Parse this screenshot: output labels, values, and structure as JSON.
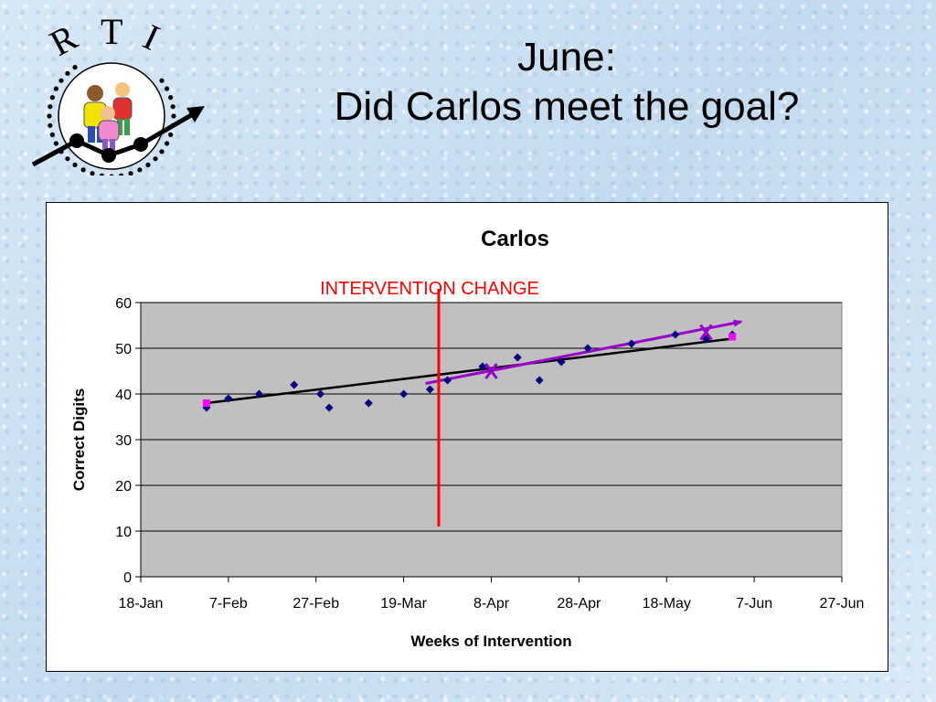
{
  "slide": {
    "title_line1": "June:",
    "title_line2": "Did Carlos meet the goal?",
    "logo_text": [
      "R",
      "T",
      "I"
    ]
  },
  "chart_data": {
    "type": "scatter",
    "title": "Carlos",
    "xlabel": "Weeks of Intervention",
    "ylabel": "Correct Digits",
    "x_ticks": [
      "18-Jan",
      "7-Feb",
      "27-Feb",
      "19-Mar",
      "8-Apr",
      "28-Apr",
      "18-May",
      "7-Jun",
      "27-Jun"
    ],
    "xlim": [
      "18-Jan",
      "27-Jun"
    ],
    "y_ticks": [
      0,
      10,
      20,
      30,
      40,
      50,
      60
    ],
    "ylim": [
      0,
      60
    ],
    "grid": "horizontal",
    "plot_background": "#c0c0c0",
    "series": [
      {
        "type": "scatter",
        "marker": "diamond",
        "color": "#000080",
        "points": [
          [
            "2-Feb",
            37
          ],
          [
            "7-Feb",
            39
          ],
          [
            "14-Feb",
            40
          ],
          [
            "22-Feb",
            42
          ],
          [
            "28-Feb",
            40
          ],
          [
            "2-Mar",
            37
          ],
          [
            "11-Mar",
            38
          ],
          [
            "19-Mar",
            40
          ],
          [
            "25-Mar",
            41
          ],
          [
            "29-Mar",
            43
          ],
          [
            "6-Apr",
            46
          ],
          [
            "14-Apr",
            48
          ],
          [
            "19-Apr",
            43
          ],
          [
            "24-Apr",
            47
          ],
          [
            "30-Apr",
            50
          ],
          [
            "10-May",
            51
          ],
          [
            "20-May",
            53
          ],
          [
            "27-May",
            52
          ],
          [
            "2-Jun",
            53
          ]
        ]
      },
      {
        "type": "line",
        "role": "trend-line",
        "color": "#000000",
        "points": [
          [
            "2-Feb",
            38
          ],
          [
            "2-Jun",
            52.1
          ]
        ]
      },
      {
        "type": "line",
        "role": "goal-line",
        "color": "#9900cc",
        "arrow": true,
        "points": [
          [
            "24-Mar",
            42.3
          ],
          [
            "4-Jun",
            55.8
          ]
        ]
      },
      {
        "type": "scatter",
        "role": "aimline-endpoints",
        "marker": "square",
        "color": "#ff00ff",
        "points": [
          [
            "2-Feb",
            38
          ],
          [
            "2-Jun",
            52.5
          ]
        ]
      },
      {
        "type": "scatter",
        "role": "median-x",
        "marker": "x",
        "color": "#9900cc",
        "points": [
          [
            "8-Apr",
            45
          ],
          [
            "27-May",
            53.5
          ]
        ]
      }
    ],
    "annotations": [
      {
        "text": "INTERVENTION CHANGE",
        "color": "#ff0000",
        "x": "27-Mar",
        "y_span": [
          11,
          63
        ]
      }
    ]
  }
}
